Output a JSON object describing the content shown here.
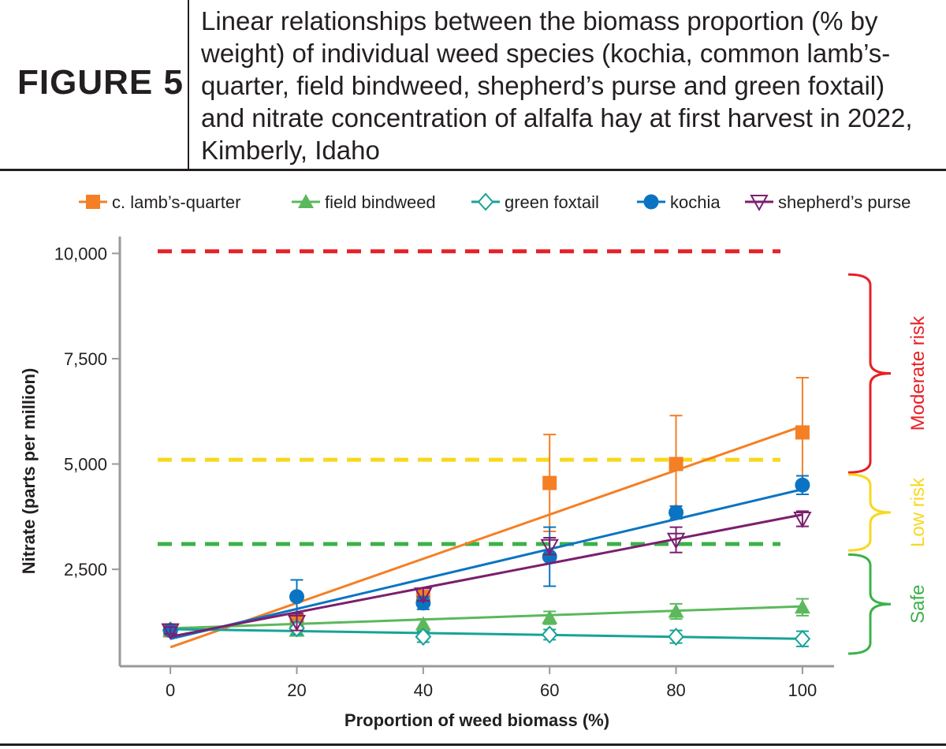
{
  "figure": {
    "label": "FIGURE 5",
    "caption": "Linear relationships between the biomass proportion (% by weight) of individual weed species (kochia, common lamb’s-quarter, field bindweed, shepherd’s purse and green foxtail) and nitrate concentration of alfalfa hay at first harvest in 2022, Kimberly, Idaho"
  },
  "chart_data": {
    "type": "scatter",
    "title": "",
    "xlabel": "Proportion of weed biomass (%)",
    "ylabel": "Nitrate (parts per million)",
    "xlim": [
      -8,
      105
    ],
    "ylim": [
      200,
      10400
    ],
    "xticks": [
      0,
      20,
      40,
      60,
      80,
      100
    ],
    "xtick_labels": [
      "0",
      "20",
      "40",
      "60",
      "80",
      "100"
    ],
    "yticks": [
      2500,
      5000,
      7500,
      10000
    ],
    "ytick_labels": [
      "2,500",
      "5,000",
      "7,500",
      "10,000"
    ],
    "grid": false,
    "legend_position": "top",
    "x": [
      0,
      20,
      40,
      60,
      80,
      100
    ],
    "series": [
      {
        "name": "c. lamb’s-quarter",
        "color": "#f47f24",
        "marker": "square-filled",
        "values": [
          1050,
          1300,
          1850,
          4550,
          5000,
          5750
        ],
        "errors": [
          80,
          150,
          150,
          1150,
          1150,
          1300
        ],
        "fit": [
          650,
          5900
        ]
      },
      {
        "name": "field bindweed",
        "color": "#5cb85c",
        "marker": "triangle-up-filled",
        "values": [
          1050,
          1050,
          1200,
          1350,
          1500,
          1600
        ],
        "errors": [
          80,
          120,
          120,
          150,
          180,
          200
        ],
        "fit": [
          1100,
          1620
        ]
      },
      {
        "name": "green foxtail",
        "color": "#17a398",
        "marker": "diamond-open",
        "values": [
          1050,
          1100,
          900,
          950,
          900,
          850
        ],
        "errors": [
          80,
          150,
          130,
          120,
          150,
          180
        ],
        "fit": [
          1080,
          850
        ]
      },
      {
        "name": "kochia",
        "color": "#0b74c2",
        "marker": "circle-filled",
        "values": [
          1050,
          1850,
          1700,
          2800,
          3850,
          4500
        ],
        "errors": [
          80,
          400,
          150,
          700,
          150,
          220
        ],
        "fit": [
          850,
          4400
        ]
      },
      {
        "name": "shepherd’s purse",
        "color": "#7b1f6e",
        "marker": "triangle-down-open",
        "values": [
          1050,
          1250,
          1900,
          3050,
          3200,
          3700
        ],
        "errors": [
          80,
          200,
          150,
          200,
          300,
          180
        ],
        "fit": [
          900,
          3800
        ]
      }
    ],
    "thresholds": [
      {
        "value": 10050,
        "color": "#e62027"
      },
      {
        "value": 5100,
        "color": "#f8d81e"
      },
      {
        "value": 3100,
        "color": "#3cb14a"
      }
    ],
    "risk_zones": [
      {
        "label": "Moderate risk",
        "color": "#e62027",
        "from": 4800,
        "to": 9500
      },
      {
        "label": "Low risk",
        "color": "#f8d81e",
        "from": 2950,
        "to": 4750
      },
      {
        "label": "Safe",
        "color": "#3cb14a",
        "from": 500,
        "to": 2850
      }
    ]
  }
}
